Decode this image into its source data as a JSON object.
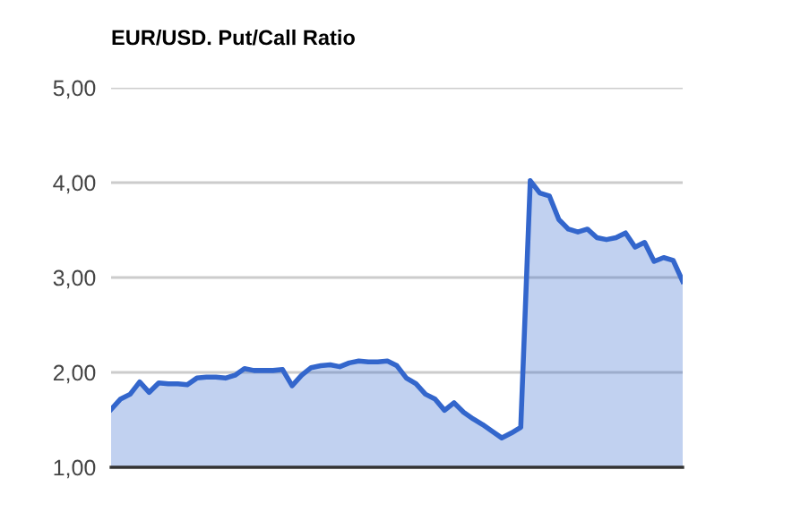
{
  "chart_data": {
    "type": "area",
    "title": "EUR/USD. Put/Call Ratio",
    "categories": [
      null,
      null,
      null,
      null,
      null,
      null,
      null,
      null,
      null,
      null,
      null,
      null,
      null,
      null,
      null,
      null,
      null,
      null,
      null,
      null,
      null,
      null,
      null,
      null,
      null,
      null,
      null,
      null,
      null,
      null,
      null,
      null,
      null,
      null,
      null,
      null,
      null,
      null,
      null,
      null,
      null,
      null,
      null,
      null,
      null,
      null,
      null,
      null,
      null,
      null,
      null,
      null,
      null,
      null,
      null,
      null,
      null,
      null,
      null,
      null,
      null
    ],
    "series": [
      {
        "color": "#3366cc",
        "values": [
          1.61,
          1.72,
          1.77,
          1.9,
          1.79,
          1.89,
          1.88,
          1.88,
          1.87,
          1.94,
          1.95,
          1.95,
          1.94,
          1.97,
          2.04,
          2.02,
          2.02,
          2.02,
          2.03,
          1.86,
          1.97,
          2.05,
          2.07,
          2.08,
          2.06,
          2.1,
          2.12,
          2.11,
          2.11,
          2.12,
          2.07,
          1.94,
          1.88,
          1.77,
          1.72,
          1.6,
          1.68,
          1.58,
          1.51,
          1.45,
          1.38,
          1.31,
          1.36,
          1.42,
          4.02,
          3.89,
          3.86,
          3.61,
          3.51,
          3.48,
          3.51,
          3.42,
          3.4,
          3.42,
          3.47,
          3.32,
          3.37,
          3.17,
          3.21,
          3.18,
          2.96
        ]
      }
    ],
    "ylim": [
      1,
      5
    ],
    "yticks": [
      {
        "value": 1,
        "label": "1,00"
      },
      {
        "value": 2,
        "label": "2,00"
      },
      {
        "value": 3,
        "label": "3,00"
      },
      {
        "value": 4,
        "label": "4,00"
      },
      {
        "value": 5,
        "label": "5,00"
      }
    ],
    "grid": "y",
    "tick_labels": "y"
  }
}
